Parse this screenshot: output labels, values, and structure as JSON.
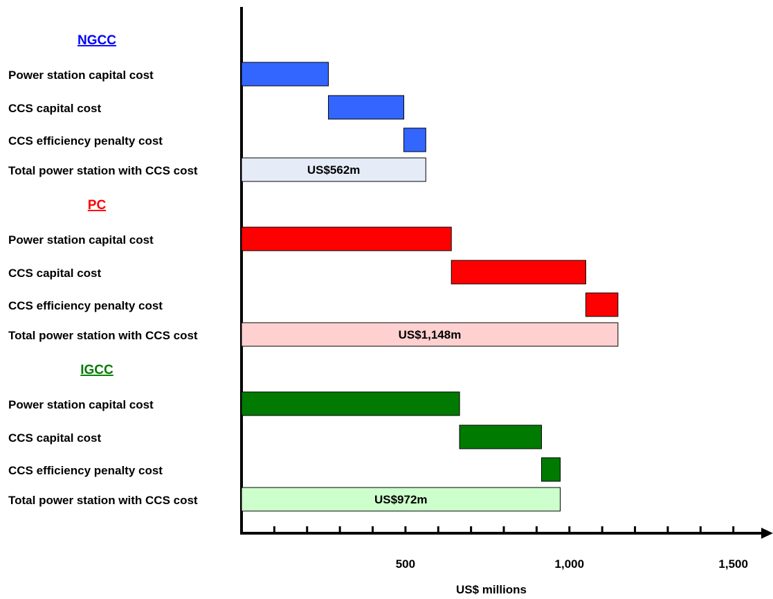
{
  "chart_data": {
    "type": "bar",
    "subtype": "waterfall-horizontal",
    "xlabel": "US$ millions",
    "x_ticks": [
      "500",
      "1,000",
      "1,500"
    ],
    "x_tick_values": [
      500,
      1000,
      1500
    ],
    "xlim": [
      0,
      1600
    ],
    "grid": false,
    "groups": [
      {
        "name": "NGCC",
        "color": "#0000ff",
        "bar_color": "#3366ff",
        "total_color": "#e6ecf7",
        "categories": [
          "Power station capital cost",
          "CCS capital cost",
          "CCS efficiency penalty cost",
          "Total power station with CCS cost"
        ],
        "values": [
          265,
          230,
          67,
          562
        ],
        "total_label": "US$562m"
      },
      {
        "name": "PC",
        "color": "#ff0000",
        "bar_color": "#ff0000",
        "total_color": "#ffd0d0",
        "categories": [
          "Power station capital cost",
          "CCS capital cost",
          "CCS efficiency penalty cost",
          "Total power station with CCS cost"
        ],
        "values": [
          640,
          410,
          98,
          1148
        ],
        "total_label": "US$1,148m"
      },
      {
        "name": "IGCC",
        "color": "#007a00",
        "bar_color": "#007a00",
        "total_color": "#ccffcc",
        "categories": [
          "Power station capital cost",
          "CCS capital cost",
          "CCS efficiency penalty cost",
          "Total power station with CCS cost"
        ],
        "values": [
          665,
          250,
          57,
          972
        ],
        "total_label": "US$972m"
      }
    ]
  }
}
